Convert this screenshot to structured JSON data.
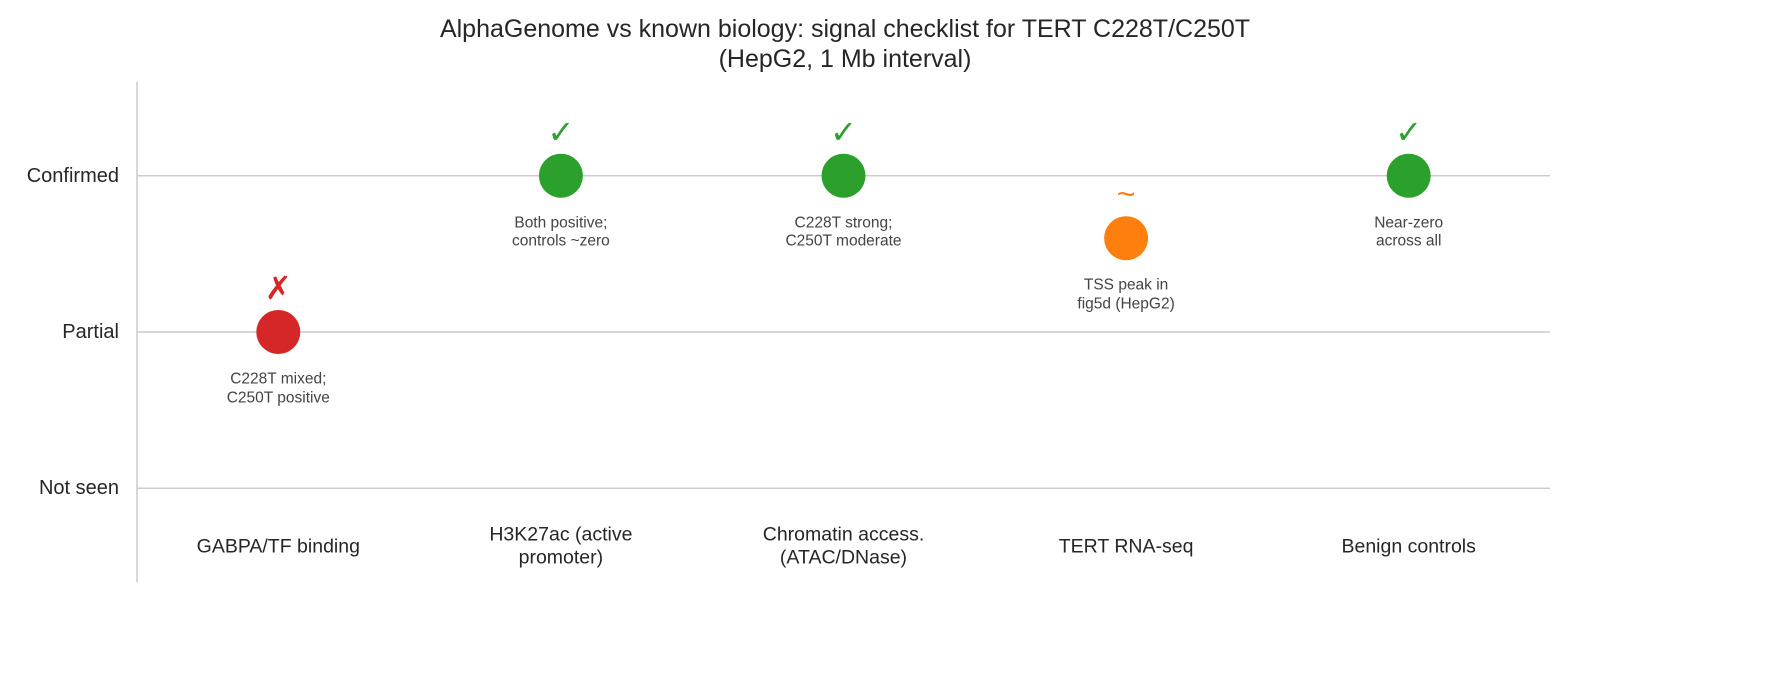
{
  "chart_data": {
    "type": "dot-checklist",
    "title": "AlphaGenome vs known biology: signal checklist for TERT C228T/C250T\n(HepG2, 1 Mb interval)",
    "categories": [
      "GABPA/TF binding",
      "H3K27ac (active\npromoter)",
      "Chromatin access.\n(ATAC/DNase)",
      "TERT RNA-seq",
      "Benign controls"
    ],
    "values": [
      1,
      2,
      2,
      1.6,
      2
    ],
    "colors": [
      "#d62728",
      "#2ca02c",
      "#2ca02c",
      "#ff7f0e",
      "#2ca02c"
    ],
    "symbols": [
      "✗",
      "✓",
      "✓",
      "~",
      "✓"
    ],
    "notes": [
      "C228T mixed;\nC250T positive",
      "Both positive;\ncontrols ~zero",
      "C228T strong;\nC250T moderate",
      "TSS peak in\nfig5d (HepG2)",
      "Near-zero\nacross all"
    ],
    "ylim": [
      -0.6,
      2.6
    ],
    "yticks": [
      {
        "value": 0,
        "label": "Not seen"
      },
      {
        "value": 1,
        "label": "Partial"
      },
      {
        "value": 2,
        "label": "Confirmed"
      }
    ],
    "grid": true
  }
}
